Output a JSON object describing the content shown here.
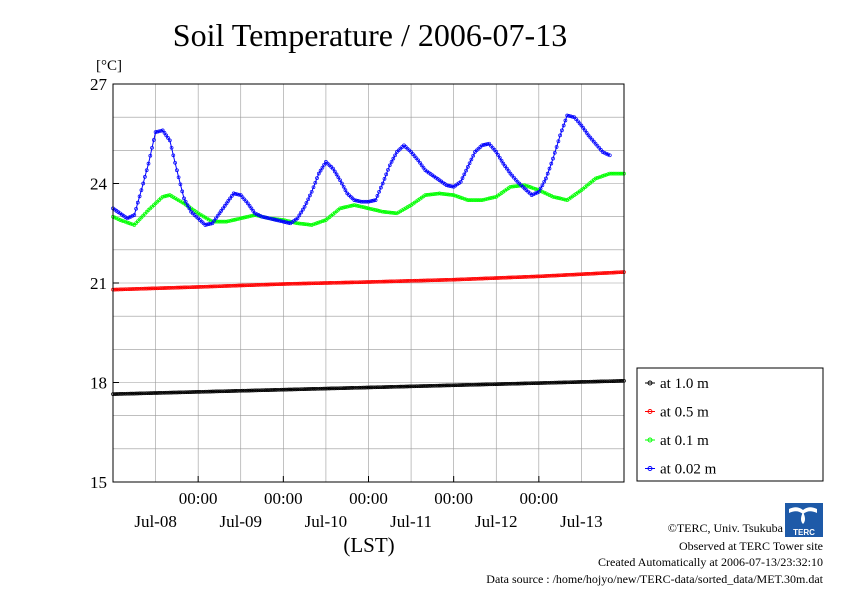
{
  "chart_data": {
    "type": "line",
    "title": "Soil Temperature / 2006-07-13",
    "unit_label": "[°C]",
    "xlabel": "(LST)",
    "ylim": [
      15,
      27
    ],
    "yticks": [
      15,
      18,
      21,
      24,
      27
    ],
    "xlim": [
      0,
      144
    ],
    "x_time_ticks": [
      {
        "x": 24,
        "label": "00:00"
      },
      {
        "x": 48,
        "label": "00:00"
      },
      {
        "x": 72,
        "label": "00:00"
      },
      {
        "x": 96,
        "label": "00:00"
      },
      {
        "x": 120,
        "label": "00:00"
      }
    ],
    "x_date_labels": [
      {
        "x": 12,
        "label": "Jul-08"
      },
      {
        "x": 36,
        "label": "Jul-09"
      },
      {
        "x": 60,
        "label": "Jul-10"
      },
      {
        "x": 84,
        "label": "Jul-11"
      },
      {
        "x": 108,
        "label": "Jul-12"
      },
      {
        "x": 132,
        "label": "Jul-13"
      }
    ],
    "grid": true,
    "legend_position": "right",
    "series": [
      {
        "name": "at 1.0 m",
        "color": "#000000",
        "points": [
          [
            0,
            17.65
          ],
          [
            144,
            18.05
          ]
        ]
      },
      {
        "name": "at 0.5 m",
        "color": "#ff0000",
        "points": [
          [
            0,
            20.8
          ],
          [
            24,
            20.88
          ],
          [
            48,
            20.97
          ],
          [
            72,
            21.03
          ],
          [
            96,
            21.1
          ],
          [
            120,
            21.2
          ],
          [
            144,
            21.33
          ]
        ]
      },
      {
        "name": "at 0.1 m",
        "color": "#00ff00",
        "points": [
          [
            0,
            23.0
          ],
          [
            2,
            22.9
          ],
          [
            6,
            22.75
          ],
          [
            10,
            23.2
          ],
          [
            14,
            23.6
          ],
          [
            16,
            23.65
          ],
          [
            20,
            23.4
          ],
          [
            24,
            23.1
          ],
          [
            28,
            22.85
          ],
          [
            32,
            22.85
          ],
          [
            36,
            22.95
          ],
          [
            40,
            23.05
          ],
          [
            44,
            22.95
          ],
          [
            48,
            22.9
          ],
          [
            52,
            22.8
          ],
          [
            56,
            22.75
          ],
          [
            60,
            22.9
          ],
          [
            64,
            23.25
          ],
          [
            68,
            23.35
          ],
          [
            72,
            23.25
          ],
          [
            76,
            23.15
          ],
          [
            80,
            23.1
          ],
          [
            84,
            23.35
          ],
          [
            88,
            23.65
          ],
          [
            92,
            23.7
          ],
          [
            96,
            23.65
          ],
          [
            100,
            23.5
          ],
          [
            104,
            23.5
          ],
          [
            108,
            23.6
          ],
          [
            112,
            23.9
          ],
          [
            116,
            23.95
          ],
          [
            120,
            23.8
          ],
          [
            124,
            23.6
          ],
          [
            128,
            23.5
          ],
          [
            132,
            23.8
          ],
          [
            136,
            24.15
          ],
          [
            140,
            24.3
          ],
          [
            144,
            24.3
          ]
        ]
      },
      {
        "name": "at 0.02 m",
        "color": "#0000ff",
        "points": [
          [
            0,
            23.25
          ],
          [
            2,
            23.1
          ],
          [
            4,
            22.95
          ],
          [
            6,
            23.05
          ],
          [
            8,
            23.8
          ],
          [
            10,
            24.6
          ],
          [
            12,
            25.55
          ],
          [
            14,
            25.6
          ],
          [
            16,
            25.3
          ],
          [
            18,
            24.4
          ],
          [
            20,
            23.55
          ],
          [
            22,
            23.15
          ],
          [
            24,
            22.95
          ],
          [
            26,
            22.75
          ],
          [
            28,
            22.8
          ],
          [
            30,
            23.1
          ],
          [
            32,
            23.4
          ],
          [
            34,
            23.7
          ],
          [
            36,
            23.65
          ],
          [
            38,
            23.4
          ],
          [
            40,
            23.1
          ],
          [
            42,
            23.0
          ],
          [
            44,
            22.95
          ],
          [
            46,
            22.9
          ],
          [
            48,
            22.85
          ],
          [
            50,
            22.8
          ],
          [
            52,
            22.95
          ],
          [
            54,
            23.3
          ],
          [
            56,
            23.75
          ],
          [
            58,
            24.3
          ],
          [
            60,
            24.65
          ],
          [
            62,
            24.45
          ],
          [
            64,
            24.1
          ],
          [
            66,
            23.7
          ],
          [
            68,
            23.5
          ],
          [
            70,
            23.45
          ],
          [
            72,
            23.45
          ],
          [
            74,
            23.5
          ],
          [
            76,
            24.0
          ],
          [
            78,
            24.55
          ],
          [
            80,
            24.95
          ],
          [
            82,
            25.15
          ],
          [
            84,
            24.95
          ],
          [
            86,
            24.7
          ],
          [
            88,
            24.4
          ],
          [
            90,
            24.25
          ],
          [
            92,
            24.1
          ],
          [
            94,
            23.95
          ],
          [
            96,
            23.9
          ],
          [
            98,
            24.05
          ],
          [
            100,
            24.5
          ],
          [
            102,
            24.95
          ],
          [
            104,
            25.15
          ],
          [
            106,
            25.2
          ],
          [
            108,
            24.95
          ],
          [
            110,
            24.6
          ],
          [
            112,
            24.3
          ],
          [
            114,
            24.05
          ],
          [
            116,
            23.85
          ],
          [
            118,
            23.65
          ],
          [
            120,
            23.75
          ],
          [
            122,
            24.15
          ],
          [
            124,
            24.75
          ],
          [
            126,
            25.45
          ],
          [
            128,
            26.05
          ],
          [
            130,
            26.0
          ],
          [
            132,
            25.75
          ],
          [
            134,
            25.45
          ],
          [
            136,
            25.2
          ],
          [
            138,
            24.95
          ],
          [
            140,
            24.85
          ]
        ]
      }
    ]
  },
  "credits": {
    "copyright": "©TERC, Univ. Tsukuba",
    "observed": "Observed at TERC Tower site",
    "created": "Created Automatically at 2006-07-13/23:32:10",
    "source": "Data source : /home/hojyo/new/TERC-data/sorted_data/MET.30m.dat"
  },
  "logo": {
    "text": "TERC",
    "color": "#1e5aa8"
  }
}
